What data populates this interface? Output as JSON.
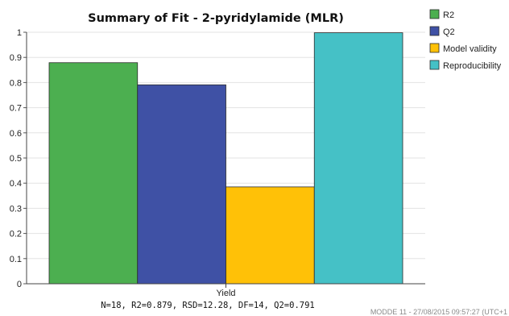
{
  "chart_data": {
    "type": "bar",
    "title": "Summary of Fit - 2-pyridylamide (MLR)",
    "categories": [
      "Yield"
    ],
    "series": [
      {
        "name": "R2",
        "values": [
          0.879
        ],
        "color": "#4caf50"
      },
      {
        "name": "Q2",
        "values": [
          0.791
        ],
        "color": "#3f51a5"
      },
      {
        "name": "Model validity",
        "values": [
          0.385
        ],
        "color": "#ffc107"
      },
      {
        "name": "Reproducibility",
        "values": [
          0.998
        ],
        "color": "#45c1c6"
      }
    ],
    "ylim": [
      0,
      1
    ],
    "yticks": [
      "0",
      "0.1",
      "0.2",
      "0.3",
      "0.4",
      "0.5",
      "0.6",
      "0.7",
      "0.8",
      "0.9",
      "1"
    ],
    "xlabel": "",
    "ylabel": "",
    "grid": "horizontal",
    "legend": "top-right",
    "stats_line": "N=18, R2=0.879, RSD=12.28, DF=14, Q2=0.791",
    "footer": "MODDE 11 - 27/08/2015 09:57:27 (UTC+1"
  }
}
